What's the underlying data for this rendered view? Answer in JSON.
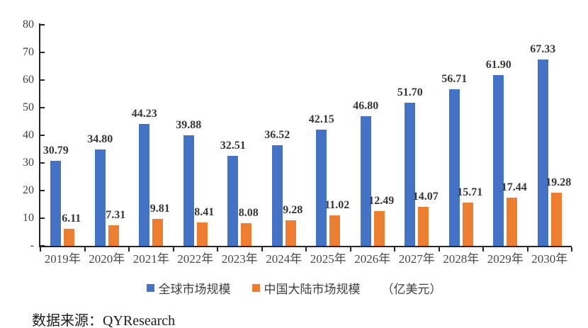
{
  "chart_data": {
    "type": "bar",
    "categories": [
      "2019年",
      "2020年",
      "2021年",
      "2022年",
      "2023年",
      "2024年",
      "2025年",
      "2026年",
      "2027年",
      "2028年",
      "2029年",
      "2030年"
    ],
    "series": [
      {
        "name": "全球市场规模",
        "color": "#4472C4",
        "values": [
          30.79,
          34.8,
          44.23,
          39.88,
          32.51,
          36.52,
          42.15,
          46.8,
          51.7,
          56.71,
          61.9,
          67.33
        ]
      },
      {
        "name": "中国大陆市场规模",
        "color": "#ED7D31",
        "values": [
          6.11,
          7.31,
          9.81,
          8.41,
          8.08,
          9.28,
          11.02,
          12.49,
          14.07,
          15.71,
          17.44,
          19.28
        ]
      }
    ],
    "title": "",
    "xlabel": "",
    "ylabel": "",
    "ylim": [
      0,
      80
    ],
    "ytick_labels": [
      "80",
      "70",
      "60",
      "50",
      "40",
      "30",
      "20",
      "10",
      "-"
    ],
    "ytick_values": [
      80,
      70,
      60,
      50,
      40,
      30,
      20,
      10,
      0
    ],
    "grid": false,
    "legend_position": "bottom",
    "value_labels": true,
    "value_label_decimals": 2
  },
  "legend": {
    "series1_label": "全球市场规模",
    "series2_label": "中国大陆市场规模",
    "unit_label": "（亿美元）"
  },
  "source": {
    "text": "数据来源：QYResearch"
  },
  "colors": {
    "series1": "#4472C4",
    "series2": "#ED7D31",
    "axis": "#262626",
    "value_text": "#363636",
    "tick_text": "#4a4a4a"
  }
}
